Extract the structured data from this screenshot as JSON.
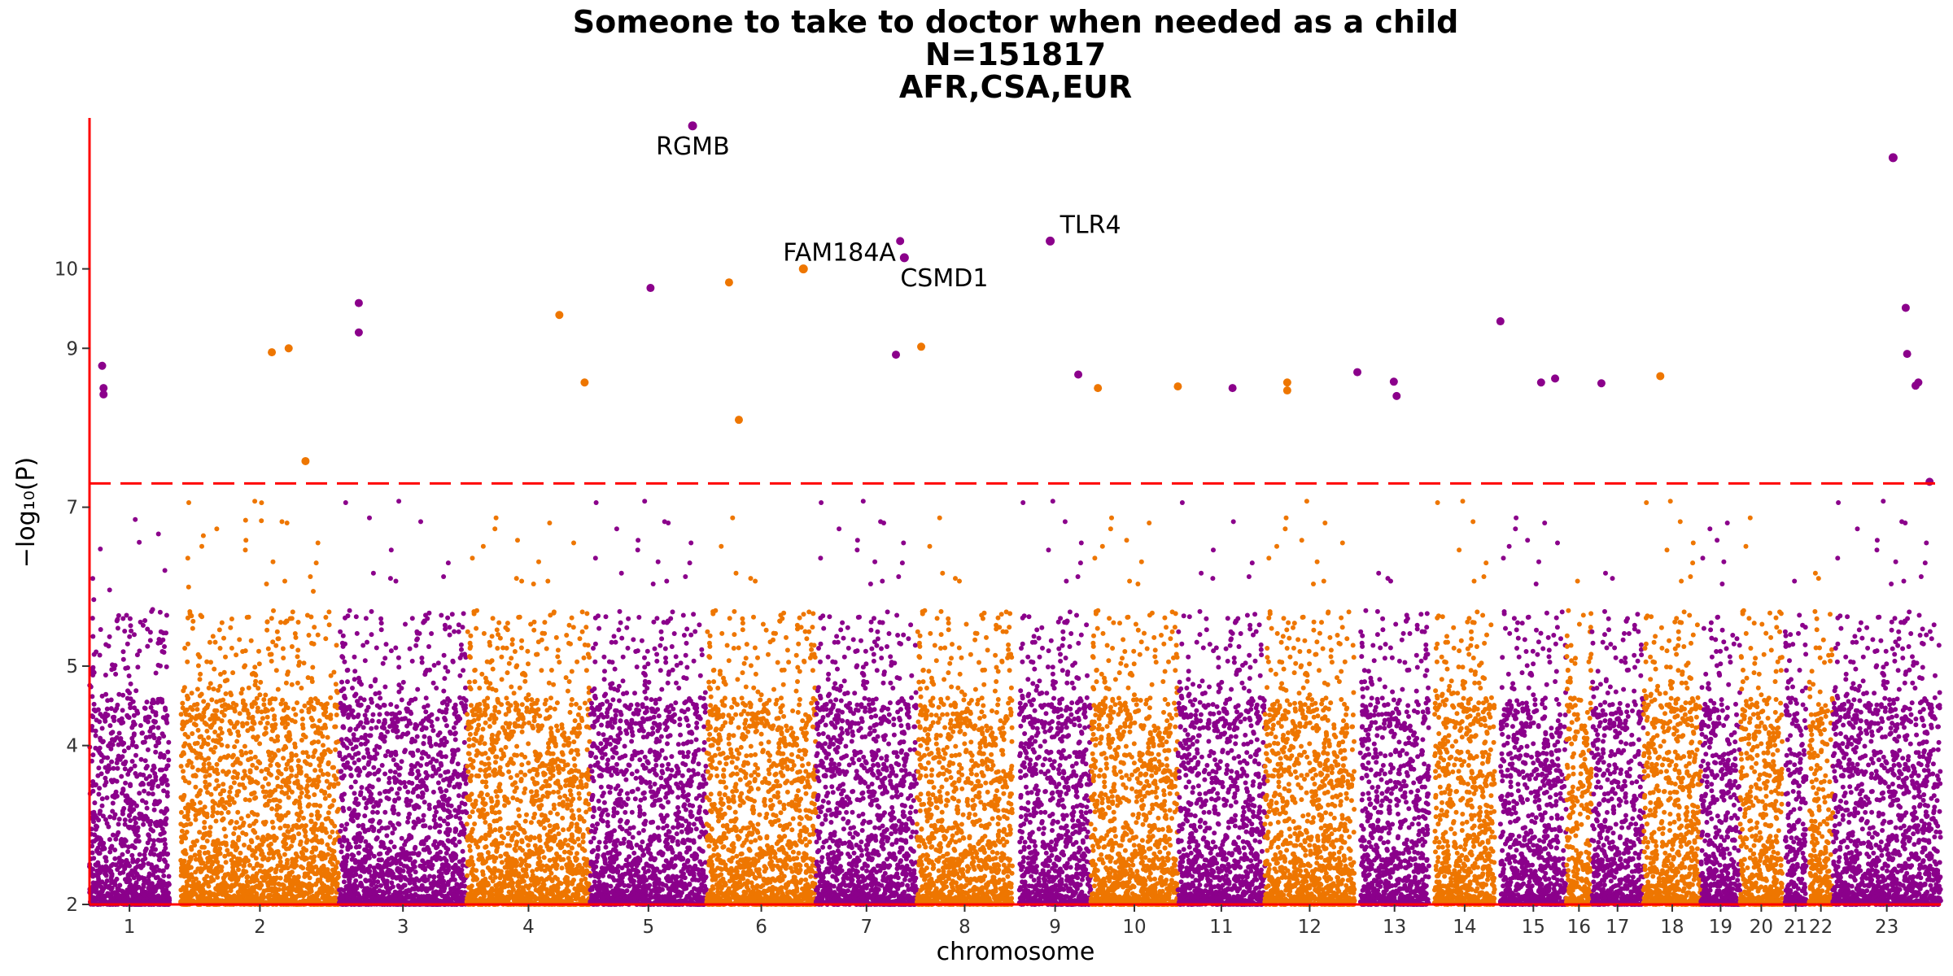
{
  "chart_data": {
    "type": "scatter",
    "subtype": "manhattan",
    "title": [
      "Someone to take to doctor when needed as a child",
      "N=151817",
      "AFR,CSA,EUR"
    ],
    "xlabel": "chromosome",
    "ylabel": "−log₁₀(P)",
    "ylim": [
      2,
      11.9
    ],
    "yticks": [
      2,
      4,
      5,
      7,
      9,
      10
    ],
    "significance_threshold": 7.3,
    "colors": {
      "odd": "#8B008B",
      "even": "#EE7600",
      "threshold": "#FF0000",
      "axis": "#FF0000"
    },
    "grid": false,
    "chromosomes": [
      {
        "label": "1",
        "start": 0,
        "end": 5.7
      },
      {
        "label": "2",
        "start": 6.5,
        "end": 17.8
      },
      {
        "label": "3",
        "start": 17.8,
        "end": 26.9
      },
      {
        "label": "4",
        "start": 26.9,
        "end": 35.7
      },
      {
        "label": "5",
        "start": 35.7,
        "end": 44.0
      },
      {
        "label": "6",
        "start": 44.0,
        "end": 51.8
      },
      {
        "label": "7",
        "start": 51.8,
        "end": 59.0
      },
      {
        "label": "8",
        "start": 59.0,
        "end": 65.8
      },
      {
        "label": "9",
        "start": 66.3,
        "end": 71.4
      },
      {
        "label": "10",
        "start": 71.4,
        "end": 77.6
      },
      {
        "label": "11",
        "start": 77.6,
        "end": 83.8
      },
      {
        "label": "12",
        "start": 83.8,
        "end": 90.2
      },
      {
        "label": "13",
        "start": 90.6,
        "end": 95.5
      },
      {
        "label": "14",
        "start": 95.9,
        "end": 100.2
      },
      {
        "label": "15",
        "start": 100.6,
        "end": 105.3
      },
      {
        "label": "16",
        "start": 105.3,
        "end": 107.1
      },
      {
        "label": "17",
        "start": 107.1,
        "end": 110.8
      },
      {
        "label": "18",
        "start": 110.8,
        "end": 114.9
      },
      {
        "label": "19",
        "start": 114.9,
        "end": 117.7
      },
      {
        "label": "20",
        "start": 117.7,
        "end": 120.7
      },
      {
        "label": "21",
        "start": 120.9,
        "end": 122.4
      },
      {
        "label": "22",
        "start": 122.6,
        "end": 124.3
      },
      {
        "label": "23",
        "start": 124.3,
        "end": 132.0
      }
    ],
    "peak_points": [
      {
        "x": 0.9,
        "y": 8.78
      },
      {
        "x": 1.0,
        "y": 8.5
      },
      {
        "x": 1.0,
        "y": 8.42
      },
      {
        "x": 13.0,
        "y": 8.95
      },
      {
        "x": 14.2,
        "y": 9.0
      },
      {
        "x": 15.4,
        "y": 7.58
      },
      {
        "x": 19.2,
        "y": 9.57
      },
      {
        "x": 19.2,
        "y": 9.2
      },
      {
        "x": 33.5,
        "y": 9.42
      },
      {
        "x": 35.3,
        "y": 8.57
      },
      {
        "x": 40.0,
        "y": 9.76
      },
      {
        "x": 45.6,
        "y": 9.83
      },
      {
        "x": 46.3,
        "y": 8.1
      },
      {
        "x": 57.8,
        "y": 10.35
      },
      {
        "x": 57.5,
        "y": 8.92
      },
      {
        "x": 59.3,
        "y": 9.02
      },
      {
        "x": 70.5,
        "y": 8.67
      },
      {
        "x": 71.9,
        "y": 8.5
      },
      {
        "x": 77.6,
        "y": 8.52
      },
      {
        "x": 81.5,
        "y": 8.5
      },
      {
        "x": 85.4,
        "y": 8.57
      },
      {
        "x": 85.4,
        "y": 8.47
      },
      {
        "x": 90.4,
        "y": 8.7
      },
      {
        "x": 93.0,
        "y": 8.58
      },
      {
        "x": 93.2,
        "y": 8.4
      },
      {
        "x": 100.6,
        "y": 9.34
      },
      {
        "x": 103.5,
        "y": 8.57
      },
      {
        "x": 104.5,
        "y": 8.62
      },
      {
        "x": 107.8,
        "y": 8.56
      },
      {
        "x": 112.0,
        "y": 8.65
      },
      {
        "x": 129.5,
        "y": 9.51
      },
      {
        "x": 129.6,
        "y": 8.93
      },
      {
        "x": 130.2,
        "y": 8.53
      },
      {
        "x": 130.4,
        "y": 8.57
      },
      {
        "x": 131.2,
        "y": 7.32
      }
    ],
    "annotations": [
      {
        "label": "RGMB",
        "x": 43.0,
        "y": 11.8
      },
      {
        "label": "FAM184A",
        "x": 50.9,
        "y": 10.0
      },
      {
        "label": "CSMD1",
        "x": 58.1,
        "y": 10.14
      },
      {
        "label": "TLR4",
        "x": 68.5,
        "y": 10.35
      },
      {
        "label": "",
        "x": 128.6,
        "y": 11.4
      }
    ],
    "label_text": {
      "rgmb": "RGMB",
      "fam184a": "FAM184A",
      "csmd1": "CSMD1",
      "tlr4": "TLR4"
    }
  }
}
